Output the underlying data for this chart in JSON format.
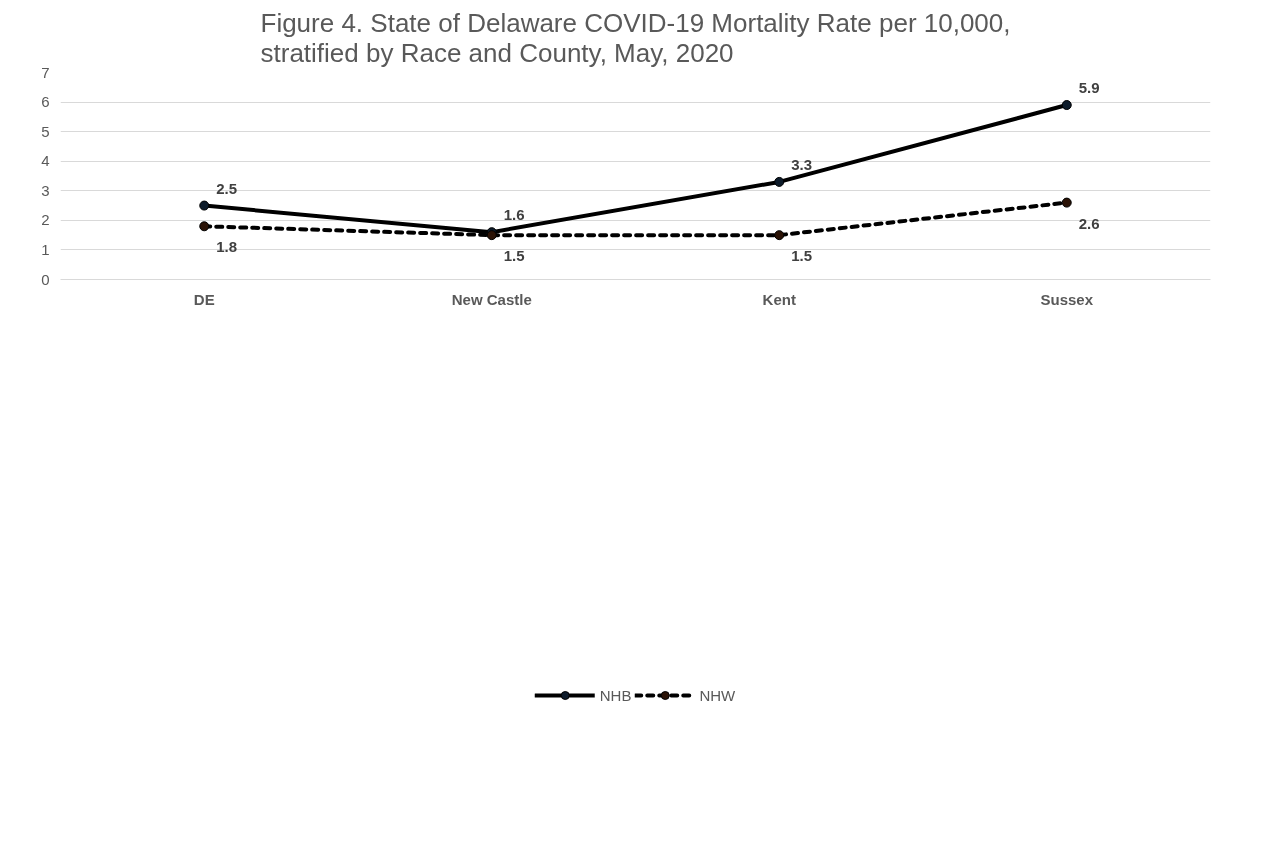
{
  "chart_data": {
    "type": "line",
    "title": "Figure 4. State of Delaware COVID-19 Mortality Rate per 10,000, stratified by Race and County, May, 2020",
    "categories": [
      "DE",
      "New Castle",
      "Kent",
      "Sussex"
    ],
    "series": [
      {
        "name": "NHB",
        "color": "#000000",
        "values": [
          2.5,
          1.6,
          3.3,
          5.9
        ],
        "line_style": "solid"
      },
      {
        "name": "NHW",
        "color": "#000000",
        "values": [
          1.8,
          1.5,
          1.5,
          2.6
        ],
        "line_style": "dashed"
      }
    ],
    "ylim": [
      0,
      7
    ],
    "yticks": [
      0,
      1,
      2,
      3,
      4,
      5,
      6,
      7
    ],
    "grid": "y",
    "legend": "bottom",
    "marker": "circle",
    "data_labels": true
  }
}
